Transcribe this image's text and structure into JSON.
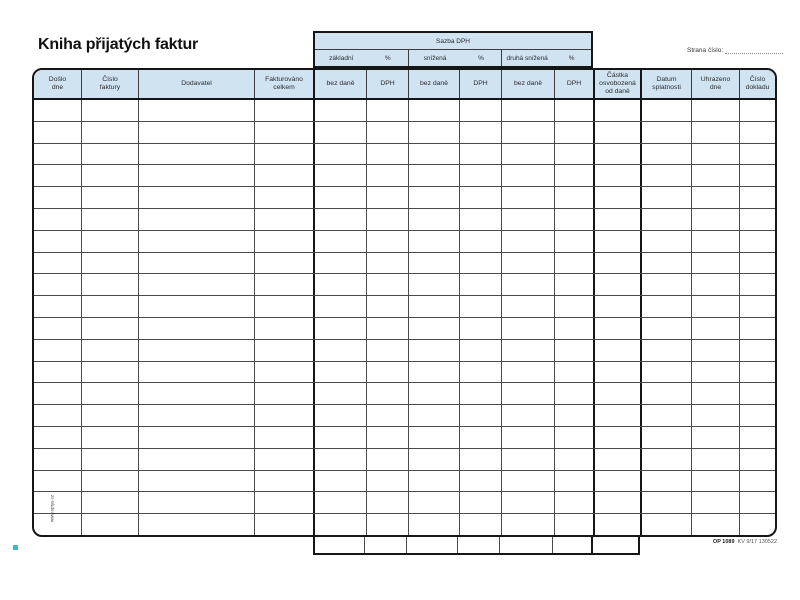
{
  "page": {
    "title": "Kniha přijatých faktur",
    "page_number_label": "Strana číslo:"
  },
  "vat_header": {
    "title": "Sazba DPH",
    "groups": [
      {
        "rate": "základní",
        "unit": "%"
      },
      {
        "rate": "snížená",
        "unit": "%"
      },
      {
        "rate": "druhá snížená",
        "unit": "%"
      }
    ]
  },
  "table": {
    "columns": [
      {
        "label": "Došlo\ndne"
      },
      {
        "label": "Číslo\nfaktury"
      },
      {
        "label": "Dodavatel"
      },
      {
        "label": "Fakturováno\ncelkem"
      },
      {
        "label": "bez daně"
      },
      {
        "label": "DPH"
      },
      {
        "label": "bez daně"
      },
      {
        "label": "DPH"
      },
      {
        "label": "bez daně"
      },
      {
        "label": "DPH"
      },
      {
        "label": "Částka\nosvobozená\nod daně"
      },
      {
        "label": "Datum\nsplatnosti"
      },
      {
        "label": "Uhrazeno\ndne"
      },
      {
        "label": "Číslo\ndokladu"
      }
    ],
    "body_row_count": 20,
    "strip_cell_count": 7
  },
  "footer": {
    "form_code": "OP 1089",
    "print_info": "KV 9/17 130522"
  },
  "side": {
    "vertical_text": "www.optys.cz"
  },
  "colors": {
    "header_fill": "#cfe3f1",
    "accent_square": "#38bccb"
  }
}
